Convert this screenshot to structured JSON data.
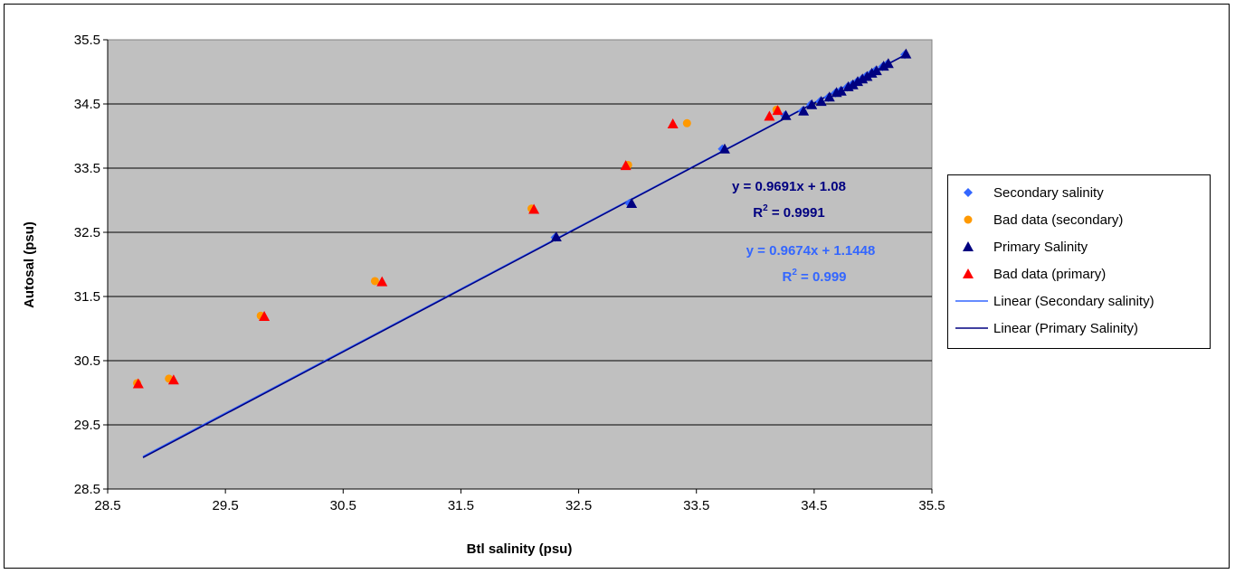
{
  "chart_data": {
    "type": "scatter",
    "title": "",
    "xlabel": "Btl salinity (psu)",
    "ylabel": "Autosal (psu)",
    "xlim": [
      28.5,
      35.5
    ],
    "ylim": [
      28.5,
      35.5
    ],
    "x_ticks": [
      "28.5",
      "29.5",
      "30.5",
      "31.5",
      "32.5",
      "33.5",
      "34.5",
      "35.5"
    ],
    "y_ticks": [
      "28.5",
      "29.5",
      "30.5",
      "31.5",
      "32.5",
      "33.5",
      "34.5",
      "35.5"
    ],
    "grid": "horizontal",
    "plot_background": "#c0c0c0",
    "legend_position": "right",
    "series": [
      {
        "name": "Secondary salinity",
        "marker": "diamond",
        "color": "#3366ff",
        "points": [
          [
            32.3,
            32.42
          ],
          [
            32.93,
            32.95
          ],
          [
            33.72,
            33.8
          ],
          [
            34.25,
            34.32
          ],
          [
            34.4,
            34.39
          ],
          [
            34.47,
            34.49
          ],
          [
            34.55,
            34.54
          ],
          [
            34.62,
            34.6
          ],
          [
            34.68,
            34.67
          ],
          [
            34.72,
            34.7
          ],
          [
            34.78,
            34.76
          ],
          [
            34.82,
            34.8
          ],
          [
            34.86,
            34.84
          ],
          [
            34.9,
            34.88
          ],
          [
            34.94,
            34.93
          ],
          [
            34.98,
            34.97
          ],
          [
            35.02,
            35.02
          ],
          [
            35.08,
            35.08
          ],
          [
            35.12,
            35.12
          ],
          [
            35.27,
            35.27
          ]
        ]
      },
      {
        "name": "Bad data (secondary)",
        "marker": "circle",
        "color": "#ff9900",
        "points": [
          [
            28.75,
            30.15
          ],
          [
            29.02,
            30.22
          ],
          [
            29.8,
            31.2
          ],
          [
            30.77,
            31.74
          ],
          [
            32.1,
            32.87
          ],
          [
            32.92,
            33.55
          ],
          [
            33.42,
            34.2
          ],
          [
            34.18,
            34.41
          ]
        ]
      },
      {
        "name": "Primary Salinity",
        "marker": "triangle",
        "color": "#000080",
        "points": [
          [
            32.31,
            32.43
          ],
          [
            32.95,
            32.95
          ],
          [
            33.74,
            33.8
          ],
          [
            34.26,
            34.32
          ],
          [
            34.41,
            34.39
          ],
          [
            34.48,
            34.49
          ],
          [
            34.56,
            34.54
          ],
          [
            34.63,
            34.61
          ],
          [
            34.69,
            34.68
          ],
          [
            34.73,
            34.7
          ],
          [
            34.79,
            34.77
          ],
          [
            34.83,
            34.8
          ],
          [
            34.87,
            34.85
          ],
          [
            34.91,
            34.89
          ],
          [
            34.95,
            34.93
          ],
          [
            34.99,
            34.98
          ],
          [
            35.03,
            35.02
          ],
          [
            35.09,
            35.09
          ],
          [
            35.13,
            35.13
          ],
          [
            35.28,
            35.28
          ]
        ]
      },
      {
        "name": "Bad data (primary)",
        "marker": "triangle",
        "color": "#ff0000",
        "points": [
          [
            28.76,
            30.14
          ],
          [
            29.06,
            30.2
          ],
          [
            29.83,
            31.19
          ],
          [
            30.83,
            31.73
          ],
          [
            32.12,
            32.86
          ],
          [
            32.9,
            33.54
          ],
          [
            33.3,
            34.19
          ],
          [
            34.12,
            34.31
          ],
          [
            34.19,
            34.4
          ]
        ]
      }
    ],
    "trendlines": [
      {
        "name": "Linear (Secondary salinity)",
        "color": "#3366ff",
        "slope": 0.9674,
        "intercept": 1.1448,
        "x_range": [
          28.8,
          35.3
        ],
        "equation": "y = 0.9674x + 1.1448",
        "r2_prefix": "R",
        "r2_exp": "2",
        "r2_value": " = 0.999"
      },
      {
        "name": "Linear (Primary Salinity)",
        "color": "#000080",
        "slope": 0.9691,
        "intercept": 1.08,
        "x_range": [
          28.8,
          35.3
        ],
        "equation": "y = 0.9691x + 1.08",
        "r2_prefix": "R",
        "r2_exp": "2",
        "r2_value": " = 0.9991"
      }
    ],
    "legend": [
      {
        "label": "Secondary salinity",
        "symbol": "diamond",
        "color": "#3366ff"
      },
      {
        "label": "Bad data (secondary)",
        "symbol": "circle",
        "color": "#ff9900"
      },
      {
        "label": "Primary Salinity",
        "symbol": "triangle",
        "color": "#000080"
      },
      {
        "label": "Bad data (primary)",
        "symbol": "triangle",
        "color": "#ff0000"
      },
      {
        "label": "Linear (Secondary salinity)",
        "symbol": "line",
        "color": "#3366ff"
      },
      {
        "label": "Linear (Primary Salinity)",
        "symbol": "line",
        "color": "#000080"
      }
    ]
  }
}
